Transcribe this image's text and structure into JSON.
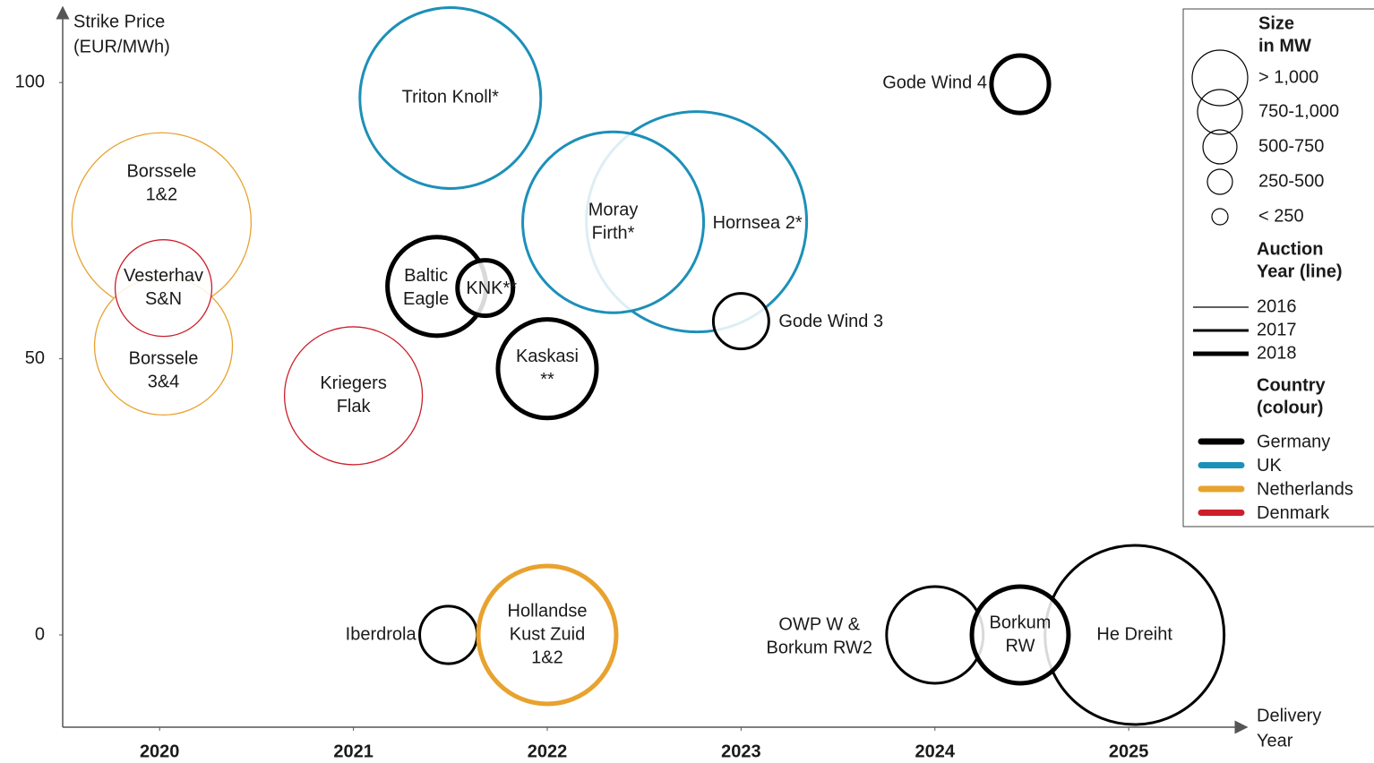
{
  "chart_data": {
    "type": "bubble",
    "y_label": [
      "Strike Price",
      "(EUR/MWh)"
    ],
    "x_label": [
      "Delivery",
      "Year"
    ],
    "xlim": [
      2019.5,
      2025.6
    ],
    "ylim": [
      -16.7,
      113
    ],
    "xticks": [
      2020,
      2021,
      2022,
      2023,
      2024,
      2025
    ],
    "yticks": [
      0,
      50,
      100
    ],
    "grid": false,
    "countries": [
      {
        "name": "Germany",
        "color": "#000000"
      },
      {
        "name": "UK",
        "color": "#1c90b8"
      },
      {
        "name": "Netherlands",
        "color": "#e8a22e"
      },
      {
        "name": "Denmark",
        "color": "#cc1f2a"
      }
    ],
    "auction_years": [
      2016,
      2017,
      2018
    ],
    "points": [
      {
        "label": [
          "Borssele",
          "1&2"
        ],
        "x": 2020.01,
        "y": 74.7,
        "size": 845,
        "country": "Netherlands",
        "auction_year": 2016
      },
      {
        "label": [
          "Borssele",
          "3&4"
        ],
        "x": 2020.02,
        "y": 52.3,
        "size": 501,
        "country": "Netherlands",
        "auction_year": 2016
      },
      {
        "label": [
          "Vesterhav",
          "S&N"
        ],
        "x": 2020.02,
        "y": 62.8,
        "size": 246,
        "country": "Denmark",
        "auction_year": 2016
      },
      {
        "label": [
          "Kriegers",
          "Flak"
        ],
        "x": 2021,
        "y": 43.3,
        "size": 501,
        "country": "Denmark",
        "auction_year": 2016
      },
      {
        "label": [
          "Triton Knoll*"
        ],
        "x": 2021.5,
        "y": 97.2,
        "size": 862,
        "country": "UK",
        "auction_year": 2017
      },
      {
        "label": [
          "Hornsea 2*"
        ],
        "x": 2022.77,
        "y": 74.8,
        "size": 1278,
        "country": "UK",
        "auction_year": 2017
      },
      {
        "label": [
          "Moray",
          "Firth*"
        ],
        "x": 2022.34,
        "y": 74.7,
        "size": 862,
        "country": "UK",
        "auction_year": 2017
      },
      {
        "label": [
          "Gode Wind 3"
        ],
        "x": 2023,
        "y": 56.8,
        "size": 81,
        "country": "Germany",
        "auction_year": 2017
      },
      {
        "label": [
          "Baltic",
          "Eagle"
        ],
        "x": 2021.43,
        "y": 63.1,
        "size": 256,
        "country": "Germany",
        "auction_year": 2018
      },
      {
        "label": [
          "KNK**"
        ],
        "x": 2021.68,
        "y": 62.8,
        "size": 81,
        "country": "Germany",
        "auction_year": 2018
      },
      {
        "label": [
          "Kaskasi",
          "**"
        ],
        "x": 2022,
        "y": 48.2,
        "size": 256,
        "country": "Germany",
        "auction_year": 2018
      },
      {
        "label": [
          "Gode Wind 4"
        ],
        "x": 2024.44,
        "y": 99.7,
        "size": 87,
        "country": "Germany",
        "auction_year": 2018
      },
      {
        "label": [
          "Iberdrola"
        ],
        "x": 2021.49,
        "y": 0,
        "size": 87,
        "country": "Germany",
        "auction_year": 2017
      },
      {
        "label": [
          "Hollandse",
          "Kust Zuid",
          "1&2"
        ],
        "x": 2022,
        "y": 0,
        "size": 501,
        "country": "Netherlands",
        "auction_year": 2018
      },
      {
        "label": [
          "OWP W &",
          "Borkum RW2"
        ],
        "x": 2024,
        "y": 0,
        "size": 246,
        "country": "Germany",
        "auction_year": 2017
      },
      {
        "label": [
          "He Dreiht"
        ],
        "x": 2025.03,
        "y": 0,
        "size": 845,
        "country": "Germany",
        "auction_year": 2017
      },
      {
        "label": [
          "Borkum",
          "RW"
        ],
        "x": 2024.44,
        "y": 0,
        "size": 246,
        "country": "Germany",
        "auction_year": 2018
      }
    ],
    "legend": {
      "size_title": [
        "Size",
        "in MW"
      ],
      "size_entries": [
        "> 1,000",
        "750-1,000",
        "500-750",
        "250-500",
        "< 250"
      ],
      "auction_title": [
        "Auction",
        "Year (line)"
      ],
      "country_title": [
        "Country",
        "(colour)"
      ]
    }
  }
}
